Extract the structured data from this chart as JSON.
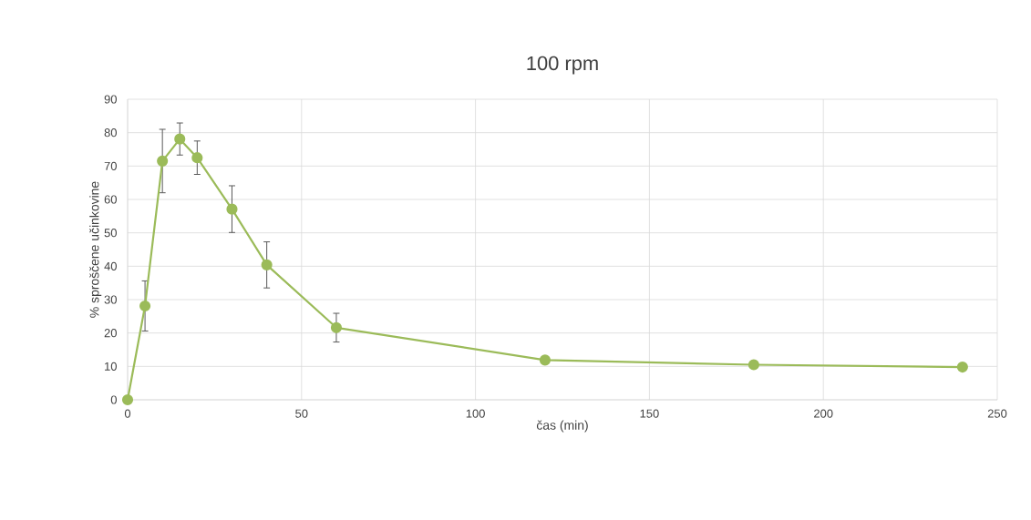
{
  "chart_data": {
    "type": "line",
    "title": "100 rpm",
    "xlabel": "čas (min)",
    "ylabel": "% sproščene učinkovine",
    "x": [
      0,
      5,
      10,
      15,
      20,
      30,
      40,
      60,
      120,
      180,
      240
    ],
    "series": [
      {
        "color": "#9bbb59",
        "values": [
          0,
          28.1,
          71.5,
          78.1,
          72.5,
          57.1,
          40.4,
          21.6,
          11.9,
          10.5,
          9.8
        ],
        "errors": [
          null,
          7.5,
          9.5,
          4.8,
          5,
          7,
          6.9,
          4.3,
          null,
          null,
          null
        ]
      }
    ],
    "xlim": [
      0,
      250
    ],
    "ylim": [
      0,
      90
    ],
    "xticks": [
      0,
      50,
      100,
      150,
      200,
      250
    ],
    "yticks": [
      0,
      10,
      20,
      30,
      40,
      50,
      60,
      70,
      80,
      90
    ],
    "grid": true,
    "marker": "circle",
    "line_style": "solid"
  }
}
